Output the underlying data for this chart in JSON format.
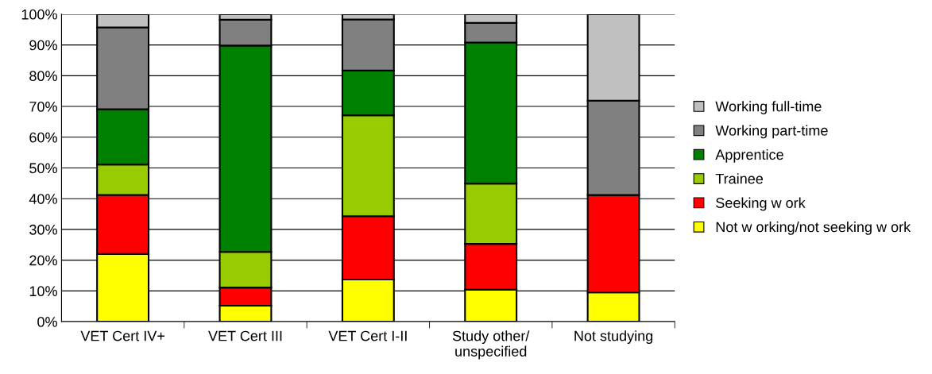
{
  "chart_data": {
    "type": "bar",
    "stacked": true,
    "categories": [
      "VET Cert IV+",
      "VET Cert III",
      "VET Cert I-II",
      "Study other/\nunspecified",
      "Not studying"
    ],
    "series": [
      {
        "name": "Not w orking/not seeking w ork",
        "color": "#ffff00",
        "values": [
          22.0,
          5.2,
          13.7,
          10.4,
          9.5
        ]
      },
      {
        "name": "Seeking w ork",
        "color": "#ff0000",
        "values": [
          19.2,
          5.9,
          20.6,
          14.9,
          31.7
        ]
      },
      {
        "name": "Trainee",
        "color": "#99cc00",
        "values": [
          9.9,
          11.6,
          32.8,
          19.6,
          0
        ]
      },
      {
        "name": "Apprentice",
        "color": "#008000",
        "values": [
          18.0,
          67.1,
          14.6,
          45.9,
          0
        ]
      },
      {
        "name": "Working part-time",
        "color": "#808080",
        "values": [
          26.6,
          8.4,
          16.6,
          6.4,
          30.7
        ]
      },
      {
        "name": "Working full-time",
        "color": "#c0c0c0",
        "values": [
          4.3,
          1.8,
          1.7,
          2.8,
          28.1
        ]
      }
    ],
    "ylim": [
      0,
      100
    ],
    "yticks": [
      {
        "value": 0,
        "label": "0%"
      },
      {
        "value": 10,
        "label": "10%"
      },
      {
        "value": 20,
        "label": "20%"
      },
      {
        "value": 30,
        "label": "30%"
      },
      {
        "value": 40,
        "label": "40%"
      },
      {
        "value": 50,
        "label": "50%"
      },
      {
        "value": 60,
        "label": "60%"
      },
      {
        "value": 70,
        "label": "70%"
      },
      {
        "value": 80,
        "label": "80%"
      },
      {
        "value": 90,
        "label": "90%"
      },
      {
        "value": 100,
        "label": "100%"
      }
    ],
    "grid": "y",
    "legend": "right"
  }
}
